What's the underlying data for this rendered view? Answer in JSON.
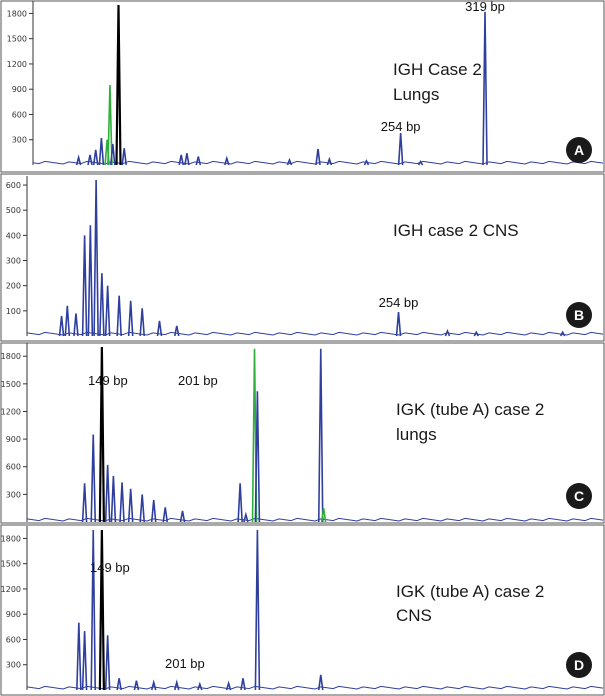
{
  "colors": {
    "trace_main": "#2f3f9e",
    "trace_green": "#2fae3a",
    "marker_line": "#000000",
    "badge_fill": "#1a1a1a",
    "frame": "#555555"
  },
  "chart_data": [
    {
      "type": "line",
      "panel": "A",
      "title_lines": [
        "IGH Case 2",
        "Lungs"
      ],
      "ylim": [
        0,
        1900
      ],
      "yticks": [
        300,
        600,
        900,
        1200,
        1500,
        1800
      ],
      "peaks": [
        {
          "pos": 0.15,
          "height": 1900,
          "color": "marker"
        },
        {
          "pos": 0.13,
          "height": 300,
          "color": "green"
        },
        {
          "pos": 0.135,
          "height": 950,
          "color": "green"
        },
        {
          "pos": 0.12,
          "height": 320,
          "color": "main"
        },
        {
          "pos": 0.11,
          "height": 180,
          "color": "main"
        },
        {
          "pos": 0.1,
          "height": 120,
          "color": "main"
        },
        {
          "pos": 0.08,
          "height": 90,
          "color": "main"
        },
        {
          "pos": 0.14,
          "height": 250,
          "color": "main"
        },
        {
          "pos": 0.16,
          "height": 200,
          "color": "main"
        },
        {
          "pos": 0.26,
          "height": 120,
          "color": "main"
        },
        {
          "pos": 0.27,
          "height": 140,
          "color": "main"
        },
        {
          "pos": 0.29,
          "height": 100,
          "color": "main"
        },
        {
          "pos": 0.34,
          "height": 80,
          "color": "main"
        },
        {
          "pos": 0.45,
          "height": 60,
          "color": "main"
        },
        {
          "pos": 0.5,
          "height": 190,
          "color": "main"
        },
        {
          "pos": 0.52,
          "height": 70,
          "color": "main"
        },
        {
          "pos": 0.585,
          "height": 50,
          "color": "main"
        },
        {
          "pos": 0.645,
          "height": 380,
          "color": "main",
          "label": "254 bp"
        },
        {
          "pos": 0.68,
          "height": 40,
          "color": "main"
        },
        {
          "pos": 0.793,
          "height": 1820,
          "color": "main",
          "label": "319 bp"
        }
      ]
    },
    {
      "type": "line",
      "panel": "B",
      "title_lines": [
        "IGH case 2 CNS"
      ],
      "ylim": [
        0,
        620
      ],
      "yticks": [
        100,
        200,
        300,
        400,
        500,
        600
      ],
      "peaks": [
        {
          "pos": 0.06,
          "height": 80,
          "color": "main"
        },
        {
          "pos": 0.07,
          "height": 120,
          "color": "main"
        },
        {
          "pos": 0.085,
          "height": 90,
          "color": "main"
        },
        {
          "pos": 0.1,
          "height": 400,
          "color": "main"
        },
        {
          "pos": 0.11,
          "height": 440,
          "color": "main"
        },
        {
          "pos": 0.12,
          "height": 630,
          "color": "main"
        },
        {
          "pos": 0.13,
          "height": 250,
          "color": "main"
        },
        {
          "pos": 0.14,
          "height": 200,
          "color": "main"
        },
        {
          "pos": 0.16,
          "height": 160,
          "color": "main"
        },
        {
          "pos": 0.18,
          "height": 140,
          "color": "main"
        },
        {
          "pos": 0.2,
          "height": 110,
          "color": "main"
        },
        {
          "pos": 0.23,
          "height": 60,
          "color": "main"
        },
        {
          "pos": 0.26,
          "height": 40,
          "color": "main"
        },
        {
          "pos": 0.645,
          "height": 95,
          "color": "main",
          "label": "254 bp"
        },
        {
          "pos": 0.73,
          "height": 20,
          "color": "main"
        },
        {
          "pos": 0.78,
          "height": 15,
          "color": "main"
        },
        {
          "pos": 0.93,
          "height": 15,
          "color": "main"
        }
      ]
    },
    {
      "type": "line",
      "panel": "C",
      "title_lines": [
        "IGK (tube A) case 2",
        "lungs"
      ],
      "ylim": [
        0,
        1900
      ],
      "yticks": [
        300,
        600,
        900,
        1200,
        1500,
        1800
      ],
      "peaks": [
        {
          "pos": 0.13,
          "height": 1900,
          "color": "marker"
        },
        {
          "pos": 0.1,
          "height": 420,
          "color": "main"
        },
        {
          "pos": 0.115,
          "height": 950,
          "color": "main"
        },
        {
          "pos": 0.14,
          "height": 620,
          "color": "main"
        },
        {
          "pos": 0.15,
          "height": 500,
          "color": "main"
        },
        {
          "pos": 0.165,
          "height": 430,
          "color": "main"
        },
        {
          "pos": 0.18,
          "height": 360,
          "color": "main"
        },
        {
          "pos": 0.2,
          "height": 300,
          "color": "main"
        },
        {
          "pos": 0.22,
          "height": 240,
          "color": "main"
        },
        {
          "pos": 0.24,
          "height": 160,
          "color": "main"
        },
        {
          "pos": 0.27,
          "height": 120,
          "color": "main"
        },
        {
          "pos": 0.37,
          "height": 420,
          "color": "main"
        },
        {
          "pos": 0.38,
          "height": 80,
          "color": "main"
        },
        {
          "pos": 0.395,
          "height": 1880,
          "color": "green"
        },
        {
          "pos": 0.4,
          "height": 1420,
          "color": "main",
          "label": "149 bp"
        },
        {
          "pos": 0.51,
          "height": 1880,
          "color": "main",
          "label": "201 bp"
        },
        {
          "pos": 0.515,
          "height": 150,
          "color": "green"
        }
      ]
    },
    {
      "type": "line",
      "panel": "D",
      "title_lines": [
        "IGK (tube A) case 2",
        "CNS"
      ],
      "ylim": [
        0,
        1900
      ],
      "yticks": [
        300,
        600,
        900,
        1200,
        1500,
        1800
      ],
      "peaks": [
        {
          "pos": 0.13,
          "height": 1900,
          "color": "marker"
        },
        {
          "pos": 0.09,
          "height": 800,
          "color": "main"
        },
        {
          "pos": 0.1,
          "height": 700,
          "color": "main"
        },
        {
          "pos": 0.115,
          "height": 1900,
          "color": "main"
        },
        {
          "pos": 0.14,
          "height": 650,
          "color": "main"
        },
        {
          "pos": 0.16,
          "height": 140,
          "color": "main"
        },
        {
          "pos": 0.19,
          "height": 110,
          "color": "main"
        },
        {
          "pos": 0.22,
          "height": 90,
          "color": "main"
        },
        {
          "pos": 0.26,
          "height": 90,
          "color": "main"
        },
        {
          "pos": 0.3,
          "height": 70,
          "color": "main"
        },
        {
          "pos": 0.35,
          "height": 80,
          "color": "main"
        },
        {
          "pos": 0.375,
          "height": 140,
          "color": "main"
        },
        {
          "pos": 0.4,
          "height": 1900,
          "color": "main",
          "label": "149 bp"
        },
        {
          "pos": 0.51,
          "height": 180,
          "color": "main",
          "label": "201 bp"
        }
      ]
    }
  ]
}
